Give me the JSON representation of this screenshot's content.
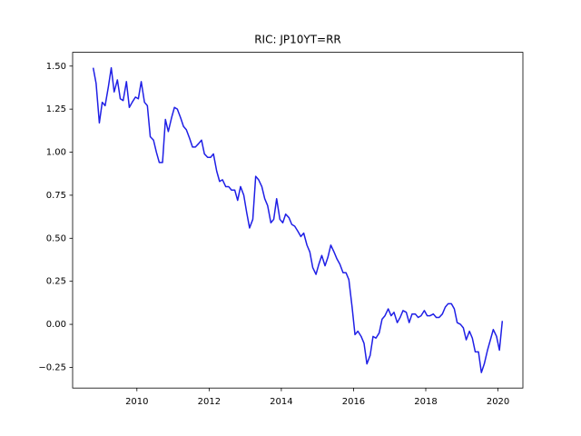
{
  "chart_data": {
    "type": "line",
    "title": "RIC: JP10YT=RR",
    "color": "#1f1fe6",
    "x": [
      2008.79,
      2008.87,
      2008.96,
      2009.04,
      2009.12,
      2009.21,
      2009.29,
      2009.37,
      2009.46,
      2009.54,
      2009.62,
      2009.71,
      2009.79,
      2009.87,
      2009.96,
      2010.04,
      2010.12,
      2010.21,
      2010.29,
      2010.37,
      2010.46,
      2010.54,
      2010.62,
      2010.71,
      2010.79,
      2010.87,
      2010.96,
      2011.04,
      2011.12,
      2011.21,
      2011.29,
      2011.37,
      2011.46,
      2011.54,
      2011.62,
      2011.71,
      2011.79,
      2011.87,
      2011.96,
      2012.04,
      2012.12,
      2012.21,
      2012.29,
      2012.37,
      2012.46,
      2012.54,
      2012.62,
      2012.71,
      2012.79,
      2012.87,
      2012.96,
      2013.04,
      2013.12,
      2013.21,
      2013.29,
      2013.37,
      2013.46,
      2013.54,
      2013.62,
      2013.71,
      2013.79,
      2013.87,
      2013.96,
      2014.04,
      2014.12,
      2014.21,
      2014.29,
      2014.37,
      2014.46,
      2014.54,
      2014.62,
      2014.71,
      2014.79,
      2014.87,
      2014.96,
      2015.04,
      2015.12,
      2015.21,
      2015.29,
      2015.37,
      2015.46,
      2015.54,
      2015.62,
      2015.71,
      2015.79,
      2015.87,
      2015.96,
      2016.04,
      2016.12,
      2016.21,
      2016.29,
      2016.37,
      2016.46,
      2016.54,
      2016.62,
      2016.71,
      2016.79,
      2016.87,
      2016.96,
      2017.04,
      2017.12,
      2017.21,
      2017.29,
      2017.37,
      2017.46,
      2017.54,
      2017.62,
      2017.71,
      2017.79,
      2017.87,
      2017.96,
      2018.04,
      2018.12,
      2018.21,
      2018.29,
      2018.37,
      2018.46,
      2018.54,
      2018.62,
      2018.71,
      2018.79,
      2018.87,
      2018.96,
      2019.04,
      2019.12,
      2019.21,
      2019.29,
      2019.37,
      2019.46,
      2019.54,
      2019.62,
      2019.71,
      2019.79,
      2019.87,
      2019.96,
      2020.04,
      2020.12
    ],
    "values": [
      1.49,
      1.4,
      1.17,
      1.29,
      1.27,
      1.38,
      1.49,
      1.35,
      1.42,
      1.31,
      1.3,
      1.41,
      1.26,
      1.29,
      1.32,
      1.31,
      1.41,
      1.29,
      1.27,
      1.09,
      1.07,
      1.0,
      0.94,
      0.94,
      1.19,
      1.12,
      1.2,
      1.26,
      1.25,
      1.2,
      1.15,
      1.13,
      1.08,
      1.03,
      1.03,
      1.05,
      1.07,
      0.99,
      0.97,
      0.97,
      0.99,
      0.89,
      0.83,
      0.84,
      0.8,
      0.8,
      0.78,
      0.78,
      0.72,
      0.8,
      0.75,
      0.65,
      0.56,
      0.61,
      0.86,
      0.84,
      0.8,
      0.73,
      0.69,
      0.59,
      0.61,
      0.73,
      0.61,
      0.59,
      0.64,
      0.62,
      0.58,
      0.57,
      0.54,
      0.51,
      0.53,
      0.46,
      0.42,
      0.33,
      0.29,
      0.35,
      0.4,
      0.34,
      0.39,
      0.46,
      0.42,
      0.38,
      0.35,
      0.3,
      0.3,
      0.26,
      0.1,
      -0.06,
      -0.04,
      -0.07,
      -0.11,
      -0.23,
      -0.18,
      -0.07,
      -0.08,
      -0.05,
      0.03,
      0.05,
      0.09,
      0.05,
      0.07,
      0.01,
      0.04,
      0.08,
      0.07,
      0.01,
      0.06,
      0.06,
      0.04,
      0.05,
      0.08,
      0.05,
      0.05,
      0.06,
      0.04,
      0.04,
      0.06,
      0.1,
      0.12,
      0.12,
      0.09,
      0.01,
      0.0,
      -0.02,
      -0.09,
      -0.04,
      -0.08,
      -0.16,
      -0.16,
      -0.28,
      -0.23,
      -0.15,
      -0.09,
      -0.03,
      -0.07,
      -0.15,
      0.02
    ],
    "xlim": [
      2008.22,
      2020.69
    ],
    "xticks": [
      2010,
      2012,
      2014,
      2016,
      2018,
      2020
    ],
    "ylim": [
      -0.37,
      1.58
    ],
    "yticks": [
      {
        "value": -0.25,
        "label": "−0.25"
      },
      {
        "value": 0,
        "label": "0.00"
      },
      0.25,
      {
        "value": 0.5,
        "label": "0.50"
      },
      0.75,
      {
        "value": 1,
        "label": "1.00"
      },
      1.25,
      {
        "value": 1.5,
        "label": "1.50"
      }
    ],
    "grid": false
  }
}
